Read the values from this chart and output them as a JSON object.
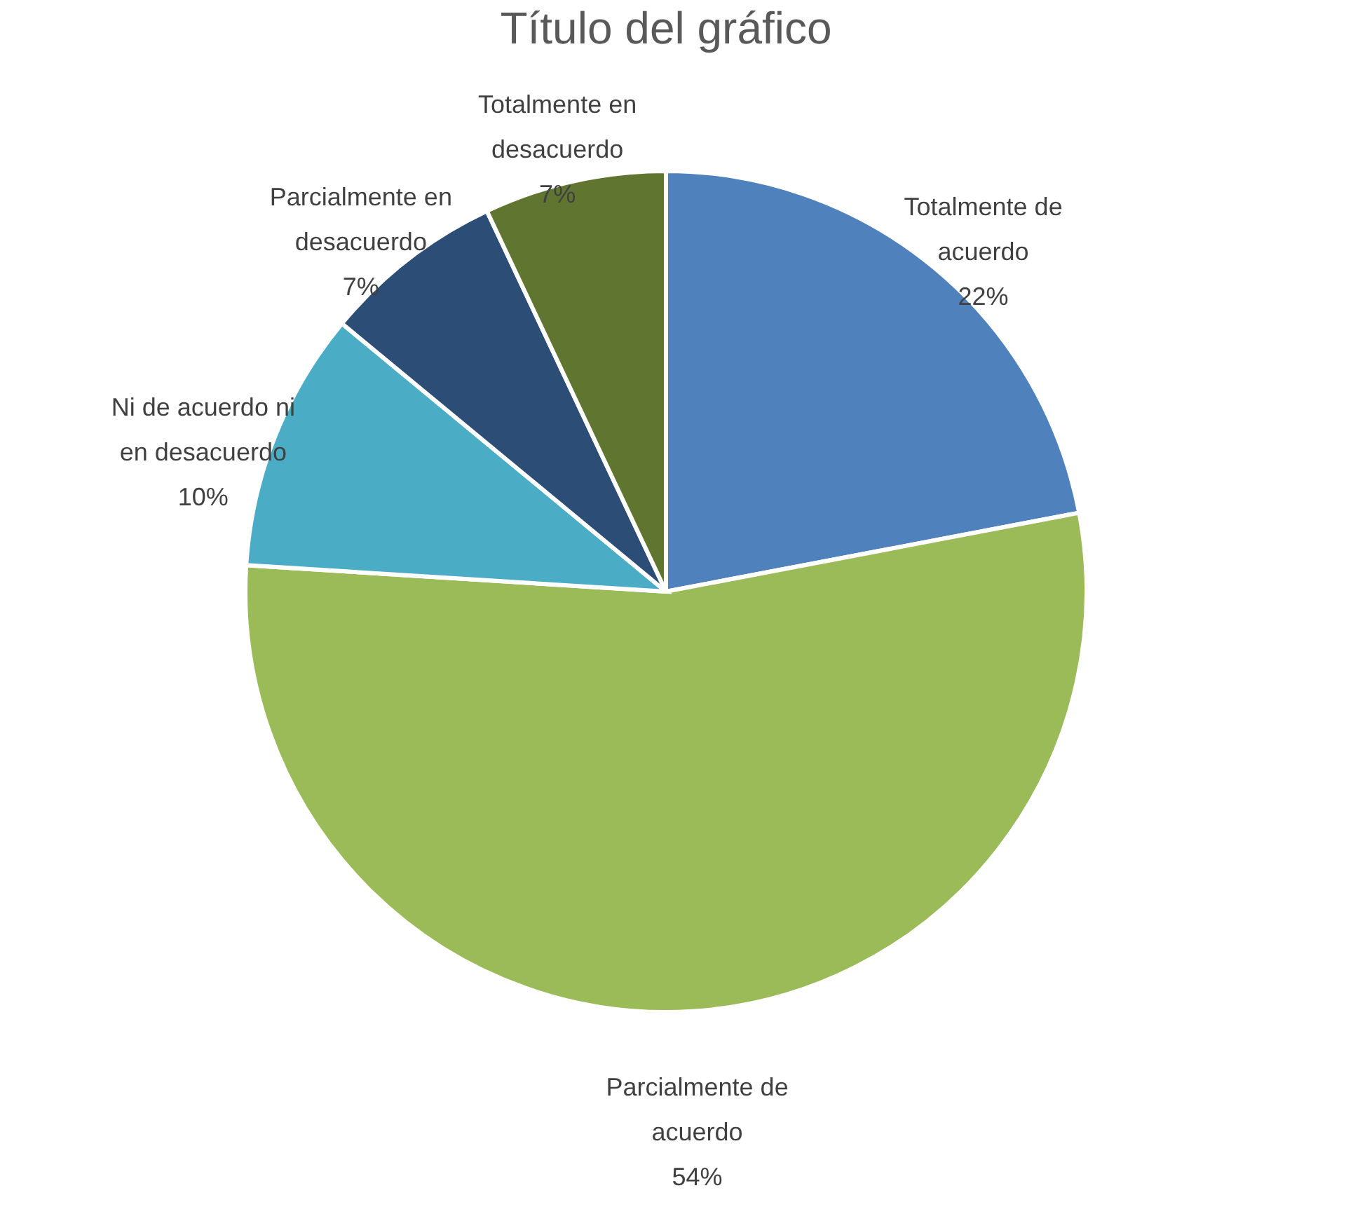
{
  "chart_data": {
    "type": "pie",
    "title": "Título del gráfico",
    "categories": [
      "Totalmente de acuerdo",
      "Parcialmente de acuerdo",
      "Ni de acuerdo ni en desacuerdo",
      "Parcialmente en desacuerdo",
      "Totalmente en desacuerdo"
    ],
    "values": [
      22,
      54,
      10,
      7,
      7
    ],
    "value_labels": [
      "22%",
      "54%",
      "10%",
      "7%",
      "7%"
    ],
    "colors": [
      "#4f81bd",
      "#9bbb59",
      "#4bacc6",
      "#2c4d75",
      "#5f7530"
    ],
    "legend": false
  }
}
